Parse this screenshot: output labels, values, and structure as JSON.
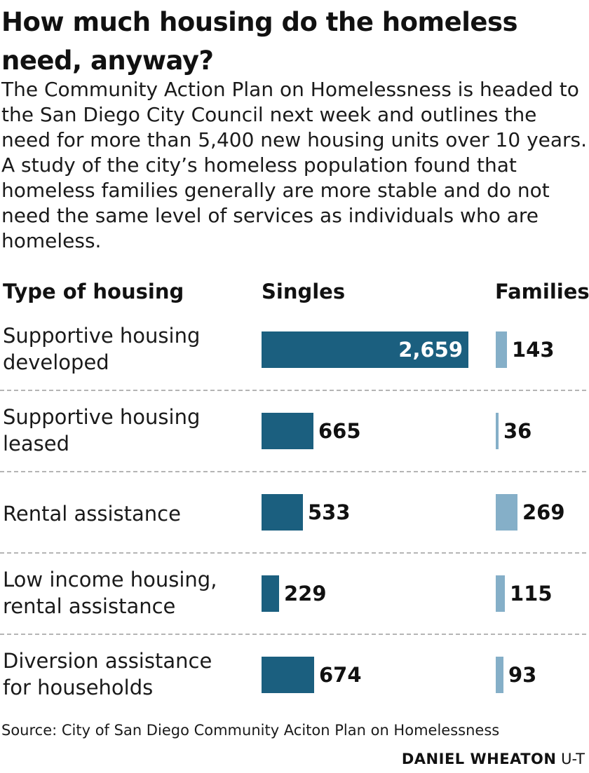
{
  "headline": {
    "title": "How much housing do the homeless need, anyway?",
    "subtitle": "The Community Action Plan on Homelessness is headed to the San Diego City Council next week and outlines the need for more than 5,400 new housing units over 10 years. A study of the city’s homeless population found that homeless families generally are more stable and do not need the same level of services as individuals who are homeless."
  },
  "chart_data": {
    "type": "bar",
    "orientation": "horizontal",
    "columns": {
      "category": "Type of housing",
      "singles": "Singles",
      "families": "Families"
    },
    "categories": [
      "Supportive housing developed",
      "Supportive housing leased",
      "Rental assistance",
      "Low income housing, rental assistance",
      "Diversion assistance for households"
    ],
    "series": [
      {
        "name": "Singles",
        "values": [
          2659,
          665,
          533,
          229,
          674
        ],
        "color": "#1b5f7f"
      },
      {
        "name": "Families",
        "values": [
          143,
          36,
          269,
          115,
          93
        ],
        "color": "#85afc8"
      }
    ],
    "value_labels": {
      "Singles": [
        "2,659",
        "665",
        "533",
        "229",
        "674"
      ],
      "Families": [
        "143",
        "36",
        "269",
        "115",
        "93"
      ]
    },
    "grid": false,
    "legend": "none"
  },
  "footer": {
    "source": "Source: City of San Diego Community Aciton Plan on Homelessness",
    "credit_name": "DANIEL WHEATON",
    "credit_org": "U-T"
  }
}
